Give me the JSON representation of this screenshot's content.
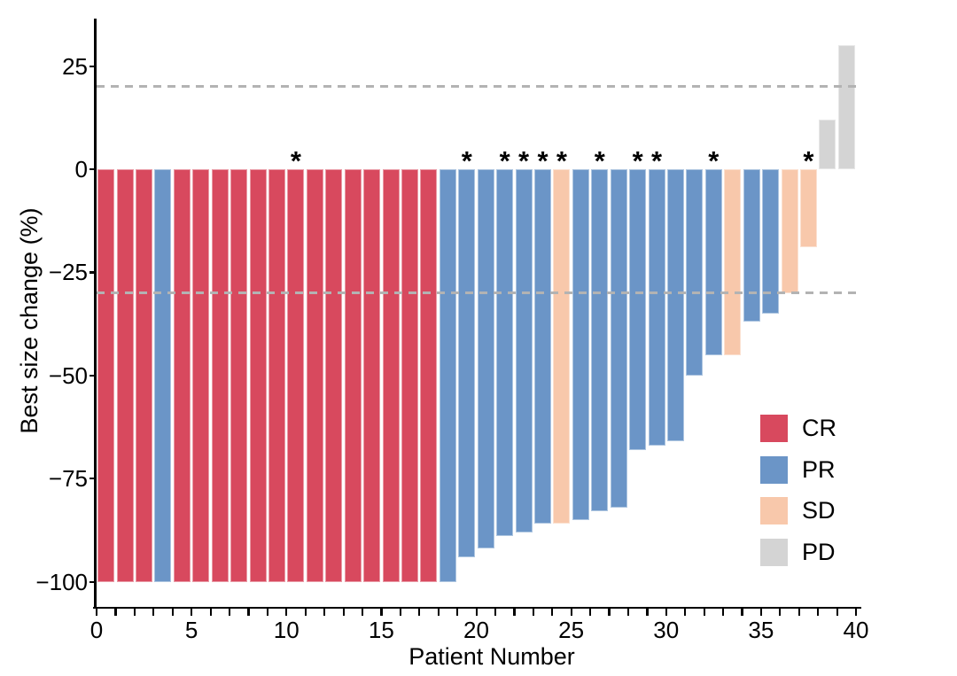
{
  "chart_data": {
    "type": "bar",
    "subtype": "waterfall",
    "title": "",
    "xlabel": "Patient Number",
    "ylabel": "Best size change (%)",
    "grid": false,
    "xlim": [
      0,
      40
    ],
    "ylim": [
      -106,
      36
    ],
    "x_major_ticks": [
      0,
      5,
      10,
      15,
      20,
      25,
      30,
      35,
      40
    ],
    "x_major_tick_labels": [
      "0",
      "5",
      "10",
      "15",
      "20",
      "25",
      "30",
      "35",
      "40"
    ],
    "x_minor_tick_step": 1,
    "y_ticks": [
      25,
      0,
      -25,
      -50,
      -75,
      -100
    ],
    "y_tick_labels": [
      "25",
      "0",
      "−25",
      "−50",
      "−75",
      "−100"
    ],
    "reference_lines": [
      {
        "y": 20,
        "style": "dashed",
        "color": "#b3b3b3"
      },
      {
        "y": -30,
        "style": "dashed",
        "color": "#b3b3b3"
      }
    ],
    "annotation_symbol": "*",
    "legend": {
      "position": "inside-right-bottom",
      "entries": [
        {
          "label": "CR",
          "color": "#d8495e"
        },
        {
          "label": "PR",
          "color": "#6b95c7"
        },
        {
          "label": "SD",
          "color": "#f8c8ab"
        },
        {
          "label": "PD",
          "color": "#d4d4d4"
        }
      ]
    },
    "patients": [
      {
        "n": 1,
        "change": -100,
        "response": "CR",
        "marked": false
      },
      {
        "n": 2,
        "change": -100,
        "response": "CR",
        "marked": false
      },
      {
        "n": 3,
        "change": -100,
        "response": "CR",
        "marked": false
      },
      {
        "n": 4,
        "change": -100,
        "response": "PR",
        "marked": false
      },
      {
        "n": 5,
        "change": -100,
        "response": "CR",
        "marked": false
      },
      {
        "n": 6,
        "change": -100,
        "response": "CR",
        "marked": false
      },
      {
        "n": 7,
        "change": -100,
        "response": "CR",
        "marked": false
      },
      {
        "n": 8,
        "change": -100,
        "response": "CR",
        "marked": false
      },
      {
        "n": 9,
        "change": -100,
        "response": "CR",
        "marked": false
      },
      {
        "n": 10,
        "change": -100,
        "response": "CR",
        "marked": false
      },
      {
        "n": 11,
        "change": -100,
        "response": "CR",
        "marked": true
      },
      {
        "n": 12,
        "change": -100,
        "response": "CR",
        "marked": false
      },
      {
        "n": 13,
        "change": -100,
        "response": "CR",
        "marked": false
      },
      {
        "n": 14,
        "change": -100,
        "response": "CR",
        "marked": false
      },
      {
        "n": 15,
        "change": -100,
        "response": "CR",
        "marked": false
      },
      {
        "n": 16,
        "change": -100,
        "response": "CR",
        "marked": false
      },
      {
        "n": 17,
        "change": -100,
        "response": "CR",
        "marked": false
      },
      {
        "n": 18,
        "change": -100,
        "response": "CR",
        "marked": false
      },
      {
        "n": 19,
        "change": -100,
        "response": "PR",
        "marked": false
      },
      {
        "n": 20,
        "change": -94,
        "response": "PR",
        "marked": true
      },
      {
        "n": 21,
        "change": -92,
        "response": "PR",
        "marked": false
      },
      {
        "n": 22,
        "change": -89,
        "response": "PR",
        "marked": true
      },
      {
        "n": 23,
        "change": -88,
        "response": "PR",
        "marked": true
      },
      {
        "n": 24,
        "change": -86,
        "response": "PR",
        "marked": true
      },
      {
        "n": 25,
        "change": -86,
        "response": "SD",
        "marked": true
      },
      {
        "n": 26,
        "change": -85,
        "response": "PR",
        "marked": false
      },
      {
        "n": 27,
        "change": -83,
        "response": "PR",
        "marked": true
      },
      {
        "n": 28,
        "change": -82,
        "response": "PR",
        "marked": false
      },
      {
        "n": 29,
        "change": -68,
        "response": "PR",
        "marked": true
      },
      {
        "n": 30,
        "change": -67,
        "response": "PR",
        "marked": true
      },
      {
        "n": 31,
        "change": -66,
        "response": "PR",
        "marked": false
      },
      {
        "n": 32,
        "change": -50,
        "response": "PR",
        "marked": false
      },
      {
        "n": 33,
        "change": -45,
        "response": "PR",
        "marked": true
      },
      {
        "n": 34,
        "change": -45,
        "response": "SD",
        "marked": false
      },
      {
        "n": 35,
        "change": -37,
        "response": "PR",
        "marked": false
      },
      {
        "n": 36,
        "change": -35,
        "response": "PR",
        "marked": false
      },
      {
        "n": 37,
        "change": -30,
        "response": "SD",
        "marked": false
      },
      {
        "n": 38,
        "change": -19,
        "response": "SD",
        "marked": true
      },
      {
        "n": 39,
        "change": 12,
        "response": "PD",
        "marked": false
      },
      {
        "n": 40,
        "change": 30,
        "response": "PD",
        "marked": false
      }
    ]
  }
}
